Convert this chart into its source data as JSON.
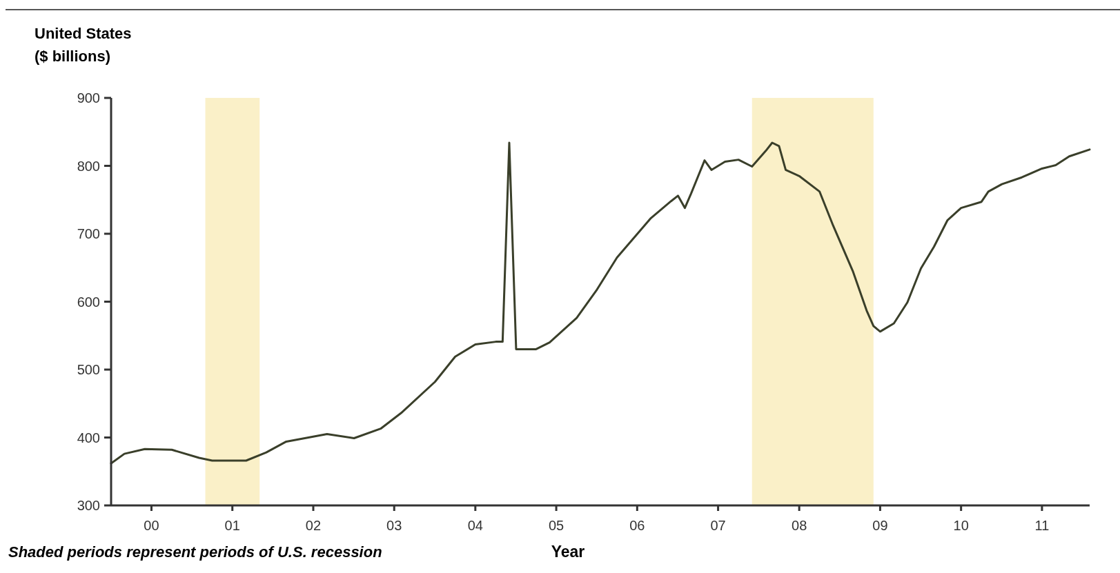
{
  "chart_data": {
    "type": "line",
    "title": "United States",
    "ylabel": "($ billions)",
    "xlabel": "Year",
    "annotations": [
      "Shaded periods represent periods of U.S. recession"
    ],
    "x": [
      "2000-01",
      "2000-03",
      "2000-06",
      "2000-10",
      "2001-02",
      "2001-04",
      "2001-09",
      "2001-12",
      "2002-03",
      "2002-09",
      "2003-01",
      "2003-05",
      "2003-08",
      "2004-01",
      "2004-04",
      "2004-07",
      "2004-10",
      "2004-11",
      "2004-12",
      "2005-01",
      "2005-04",
      "2005-06",
      "2005-10",
      "2006-01",
      "2006-04",
      "2006-09",
      "2006-12",
      "2007-01",
      "2007-02",
      "2007-03",
      "2007-05",
      "2007-06",
      "2007-08",
      "2007-10",
      "2007-12",
      "2008-02",
      "2008-03",
      "2008-04",
      "2008-05",
      "2008-07",
      "2008-10",
      "2008-12",
      "2009-03",
      "2009-05",
      "2009-06",
      "2009-07",
      "2009-09",
      "2009-11",
      "2010-01",
      "2010-03",
      "2010-05",
      "2010-07",
      "2010-10",
      "2010-11",
      "2011-01",
      "2011-04",
      "2011-07",
      "2011-09",
      "2011-11",
      "2012-02"
    ],
    "series": [
      {
        "color": "#3a3f2a",
        "values": [
          362,
          376,
          383,
          382,
          370,
          366,
          366,
          378,
          394,
          405,
          399,
          413,
          436,
          482,
          519,
          537,
          541,
          541,
          834,
          530,
          530,
          540,
          576,
          618,
          665,
          723,
          748,
          756,
          738,
          759,
          808,
          794,
          806,
          809,
          799,
          822,
          834,
          829,
          794,
          785,
          762,
          712,
          644,
          587,
          564,
          556,
          568,
          599,
          649,
          681,
          720,
          738,
          747,
          762,
          773,
          783,
          796,
          801,
          814,
          824
        ]
      }
    ],
    "xlim": [
      "2000-01",
      "2012-02"
    ],
    "xticks": [
      {
        "value": "2000-07",
        "label": "00"
      },
      {
        "value": "2001-07",
        "label": "01"
      },
      {
        "value": "2002-07",
        "label": "02"
      },
      {
        "value": "2003-07",
        "label": "03"
      },
      {
        "value": "2004-07",
        "label": "04"
      },
      {
        "value": "2005-07",
        "label": "05"
      },
      {
        "value": "2006-07",
        "label": "06"
      },
      {
        "value": "2007-07",
        "label": "07"
      },
      {
        "value": "2008-07",
        "label": "08"
      },
      {
        "value": "2009-07",
        "label": "09"
      },
      {
        "value": "2010-07",
        "label": "10"
      },
      {
        "value": "2011-07",
        "label": "11"
      }
    ],
    "ylim": [
      300,
      900
    ],
    "yticks": [
      300,
      400,
      500,
      600,
      700,
      800,
      900
    ],
    "bands": [
      {
        "axis": "x",
        "from": "2001-03",
        "to": "2001-11",
        "color": "#faf0c8"
      },
      {
        "axis": "x",
        "from": "2007-12",
        "to": "2009-06",
        "color": "#faf0c8"
      }
    ],
    "grid": false,
    "line_style": "solid",
    "marker": "none"
  }
}
